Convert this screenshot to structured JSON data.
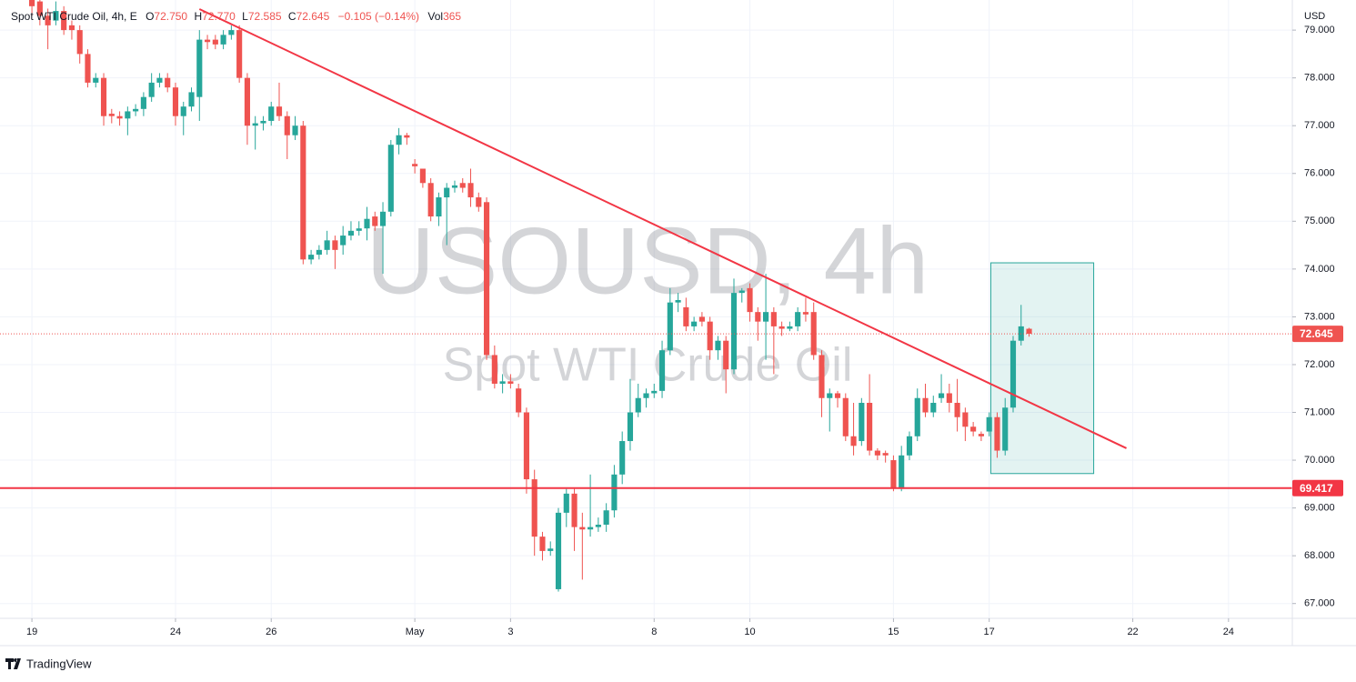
{
  "chart_data": {
    "type": "candlestick",
    "title": "Spot WTI Crude Oil, 4h, E",
    "ohlc_legend": [
      {
        "label": "O",
        "value": "72.750"
      },
      {
        "label": "H",
        "value": "72.770"
      },
      {
        "label": "L",
        "value": "72.585"
      },
      {
        "label": "C",
        "value": "72.645"
      }
    ],
    "change": "−0.105 (−0.14%)",
    "volume": {
      "label": "Vol",
      "value": "365"
    },
    "watermark": [
      "USOUSD, 4h",
      "Spot WTI Crude Oil"
    ],
    "y_axis_label": "USD",
    "brand": "TradingView",
    "up_color": "#26a69a",
    "down_color": "#ef5350",
    "open": [
      79.7,
      79.6,
      79.3,
      79.2,
      79.4,
      79.1,
      79.0,
      78.5,
      77.9,
      78.0,
      77.25,
      77.2,
      77.15,
      77.3,
      77.35,
      77.6,
      77.9,
      78.0,
      77.8,
      77.2,
      77.4,
      77.6,
      78.8,
      78.8,
      78.7,
      78.9,
      79.0,
      78.0,
      77.0,
      77.05,
      77.1,
      77.4,
      77.2,
      76.8,
      77.0,
      74.2,
      74.3,
      74.4,
      74.6,
      74.5,
      74.7,
      74.8,
      74.85,
      75.1,
      74.9,
      75.2,
      76.6,
      76.8,
      76.2,
      76.1,
      75.8,
      75.1,
      75.5,
      75.7,
      75.8,
      75.8,
      75.5,
      75.4,
      72.2,
      71.6,
      71.65,
      71.5,
      71.0,
      69.6,
      68.4,
      68.1,
      67.3,
      68.9,
      69.3,
      68.6,
      68.55,
      68.6,
      68.65,
      68.95,
      69.7,
      70.4,
      71.0,
      71.3,
      71.4,
      71.45,
      72.3,
      73.3,
      73.2,
      72.8,
      73.0,
      72.9,
      72.3,
      72.5,
      71.9,
      73.5,
      73.6,
      73.1,
      72.9,
      73.1,
      72.8,
      72.75,
      72.8,
      73.1,
      73.1,
      72.2,
      71.3,
      71.4,
      71.3,
      70.5,
      70.4,
      71.2,
      70.2,
      70.15,
      70.0,
      69.4,
      70.1,
      70.5,
      71.3,
      71.0,
      71.3,
      71.4,
      71.2,
      71.0,
      70.7,
      70.55,
      70.6,
      70.9,
      70.2,
      71.1,
      72.5,
      72.75
    ],
    "high": [
      79.9,
      79.8,
      79.45,
      79.6,
      79.5,
      79.2,
      79.1,
      78.6,
      78.1,
      78.1,
      77.35,
      77.3,
      77.4,
      77.45,
      77.7,
      78.1,
      78.1,
      78.1,
      77.9,
      77.5,
      77.8,
      79.0,
      78.9,
      78.9,
      79.0,
      79.1,
      79.1,
      78.1,
      77.2,
      77.2,
      77.5,
      77.9,
      77.3,
      77.2,
      77.1,
      74.4,
      74.5,
      74.8,
      74.7,
      74.9,
      75.0,
      75.0,
      75.3,
      75.2,
      75.4,
      76.7,
      76.95,
      76.85,
      76.3,
      76.1,
      75.9,
      75.6,
      75.8,
      75.85,
      75.9,
      76.1,
      75.6,
      75.5,
      72.4,
      71.8,
      71.8,
      71.6,
      71.1,
      69.8,
      68.5,
      68.3,
      69.0,
      69.4,
      69.4,
      68.9,
      69.7,
      68.8,
      69.1,
      69.9,
      70.6,
      71.7,
      71.6,
      71.5,
      71.6,
      72.5,
      73.6,
      73.5,
      73.4,
      73.0,
      73.1,
      73.0,
      72.6,
      72.6,
      73.8,
      73.6,
      73.7,
      73.2,
      73.9,
      73.2,
      72.9,
      72.9,
      73.2,
      73.4,
      73.3,
      72.3,
      71.5,
      71.45,
      71.4,
      71.2,
      71.3,
      71.8,
      70.25,
      70.2,
      70.1,
      70.3,
      70.6,
      71.5,
      71.6,
      71.35,
      71.8,
      71.6,
      71.7,
      71.1,
      70.8,
      70.6,
      71.0,
      71.0,
      71.3,
      72.6,
      73.25,
      72.77
    ],
    "low": [
      79.3,
      79.1,
      78.6,
      79.1,
      78.9,
      78.8,
      78.3,
      77.8,
      77.8,
      77.0,
      77.05,
      77.0,
      76.8,
      77.2,
      77.2,
      77.5,
      77.8,
      77.7,
      77.0,
      76.8,
      77.3,
      77.1,
      78.6,
      78.6,
      78.6,
      78.8,
      77.9,
      76.6,
      76.5,
      76.9,
      77.0,
      77.1,
      76.3,
      76.7,
      74.1,
      74.1,
      74.2,
      74.3,
      74.0,
      74.3,
      74.6,
      74.7,
      74.6,
      74.8,
      73.9,
      75.1,
      76.4,
      76.6,
      76.0,
      75.7,
      75.0,
      74.9,
      74.5,
      75.6,
      75.6,
      75.3,
      75.2,
      72.1,
      71.5,
      71.4,
      71.5,
      70.9,
      69.3,
      68.0,
      67.9,
      68.0,
      67.25,
      68.6,
      68.1,
      67.5,
      68.4,
      68.5,
      68.5,
      68.8,
      69.5,
      70.2,
      70.9,
      71.1,
      71.3,
      71.3,
      72.2,
      73.1,
      72.7,
      72.7,
      72.8,
      72.1,
      72.1,
      71.4,
      71.8,
      73.3,
      72.9,
      72.5,
      72.1,
      71.8,
      72.6,
      72.7,
      72.7,
      72.9,
      72.1,
      70.9,
      70.6,
      71.1,
      70.4,
      70.1,
      70.3,
      70.1,
      70.0,
      69.95,
      69.35,
      69.35,
      70.0,
      70.4,
      70.9,
      70.9,
      71.2,
      71.0,
      70.6,
      70.4,
      70.5,
      70.4,
      70.5,
      70.05,
      70.1,
      71.0,
      72.4,
      72.585
    ],
    "close": [
      79.5,
      79.3,
      79.1,
      79.4,
      79.0,
      79.0,
      78.5,
      77.9,
      78.0,
      77.2,
      77.2,
      77.15,
      77.3,
      77.35,
      77.6,
      77.9,
      78.0,
      77.8,
      77.2,
      77.4,
      77.7,
      78.8,
      78.75,
      78.7,
      78.9,
      79.0,
      78.0,
      77.0,
      77.05,
      77.1,
      77.4,
      77.2,
      76.8,
      77.0,
      74.2,
      74.3,
      74.4,
      74.6,
      74.4,
      74.7,
      74.8,
      74.85,
      75.05,
      74.9,
      75.2,
      76.6,
      76.8,
      76.75,
      76.15,
      75.8,
      75.1,
      75.5,
      75.7,
      75.75,
      75.7,
      75.5,
      75.3,
      72.2,
      71.6,
      71.65,
      71.6,
      71.0,
      69.6,
      68.4,
      68.1,
      68.15,
      68.9,
      69.3,
      68.6,
      68.55,
      68.6,
      68.65,
      68.95,
      69.7,
      70.4,
      71.0,
      71.3,
      71.4,
      71.45,
      72.3,
      73.3,
      73.35,
      72.8,
      72.9,
      72.9,
      72.3,
      72.5,
      71.9,
      73.5,
      73.55,
      73.1,
      72.9,
      73.1,
      72.8,
      72.75,
      72.8,
      73.1,
      73.05,
      72.2,
      71.3,
      71.4,
      71.3,
      70.5,
      70.3,
      71.2,
      70.2,
      70.1,
      70.1,
      69.4,
      70.1,
      70.5,
      71.3,
      71.0,
      71.2,
      71.4,
      71.2,
      70.9,
      70.7,
      70.6,
      70.5,
      70.9,
      70.2,
      71.1,
      72.5,
      72.8,
      72.645
    ],
    "xlim": [
      -4,
      158
    ],
    "xticks": [
      {
        "value": 0,
        "label": "19"
      },
      {
        "value": 18,
        "label": "24"
      },
      {
        "value": 30,
        "label": "26"
      },
      {
        "value": 48,
        "label": "May"
      },
      {
        "value": 60,
        "label": "3"
      },
      {
        "value": 78,
        "label": "8"
      },
      {
        "value": 90,
        "label": "10"
      },
      {
        "value": 108,
        "label": "15"
      },
      {
        "value": 120,
        "label": "17"
      },
      {
        "value": 138,
        "label": "22"
      },
      {
        "value": 150,
        "label": "24"
      }
    ],
    "ylim": [
      66.69,
      79.63
    ],
    "yticks": [
      {
        "value": 67,
        "label": "67.000"
      },
      {
        "value": 68,
        "label": "68.000"
      },
      {
        "value": 69,
        "label": "69.000"
      },
      {
        "value": 70,
        "label": "70.000"
      },
      {
        "value": 71,
        "label": "71.000"
      },
      {
        "value": 72,
        "label": "72.000"
      },
      {
        "value": 73,
        "label": "73.000"
      },
      {
        "value": 74,
        "label": "74.000"
      },
      {
        "value": 75,
        "label": "75.000"
      },
      {
        "value": 76,
        "label": "76.000"
      },
      {
        "value": 77,
        "label": "77.000"
      },
      {
        "value": 78,
        "label": "78.000"
      },
      {
        "value": 79,
        "label": "79.000"
      }
    ],
    "grid": true,
    "price_line": {
      "value": 72.645,
      "label": "72.645",
      "color": "#ef5350"
    },
    "horizontal_line": {
      "value": 69.417,
      "label": "69.417",
      "color": "#f23645"
    },
    "trendline": {
      "x": [
        21,
        137.2
      ],
      "y": [
        79.44,
        70.25
      ],
      "color": "#f23645"
    },
    "range_box": {
      "x": [
        120.2,
        133.1
      ],
      "y": [
        69.72,
        74.13
      ],
      "color": "#26a69a"
    }
  }
}
